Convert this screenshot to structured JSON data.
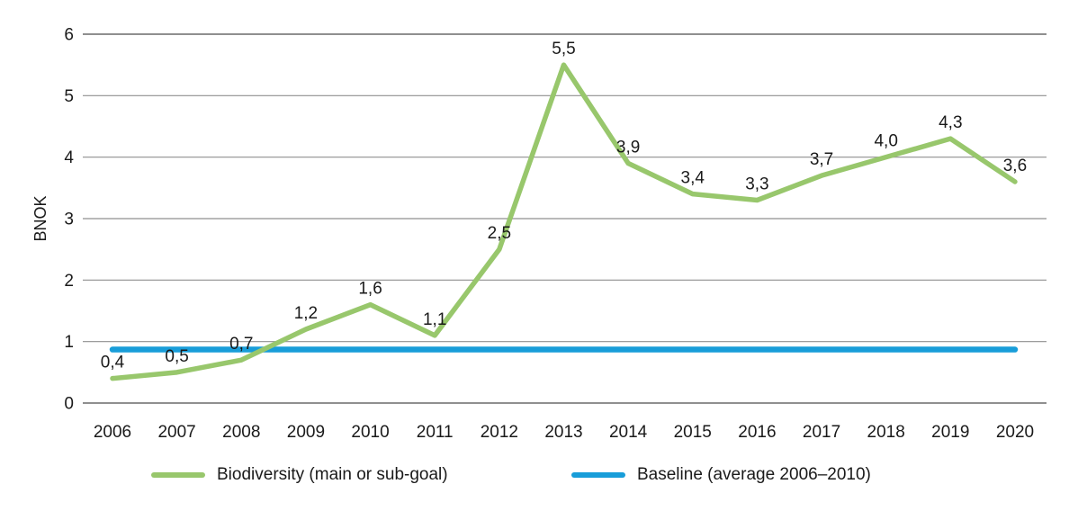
{
  "chart_data": {
    "type": "line",
    "title": "",
    "ylabel": "BNOK",
    "xlabel": "",
    "x_categories": [
      "2006",
      "2007",
      "2008",
      "2009",
      "2010",
      "2011",
      "2012",
      "2013",
      "2014",
      "2015",
      "2016",
      "2017",
      "2018",
      "2019",
      "2020"
    ],
    "yticks": [
      "0",
      "1",
      "2",
      "3",
      "4",
      "5",
      "6"
    ],
    "ylim": [
      0,
      6
    ],
    "grid": "horizontal",
    "legend_position": "bottom",
    "decimal_separator": ",",
    "series": [
      {
        "name": "Biodiversity (main or sub-goal)",
        "type": "line",
        "color": "#98c76c",
        "values": [
          0.4,
          0.5,
          0.7,
          1.2,
          1.6,
          1.1,
          2.5,
          5.5,
          3.9,
          3.4,
          3.3,
          3.7,
          4.0,
          4.3,
          3.6
        ],
        "point_labels": [
          "0,4",
          "0,5",
          "0,7",
          "1,2",
          "1,6",
          "1,1",
          "2,5",
          "5,5",
          "3,9",
          "3,4",
          "3,3",
          "3,7",
          "4,0",
          "4,3",
          "3,6"
        ]
      },
      {
        "name": "Baseline (average 2006–2010)",
        "type": "constant-line",
        "color": "#189dd9",
        "value": 0.87
      }
    ]
  },
  "legend": {
    "items": [
      {
        "label": "Biodiversity (main or sub-goal)",
        "color": "#98c76c"
      },
      {
        "label": "Baseline (average 2006–2010)",
        "color": "#189dd9"
      }
    ]
  },
  "colors": {
    "gridline": "#8f8f8f",
    "text": "#1a1a1a"
  }
}
